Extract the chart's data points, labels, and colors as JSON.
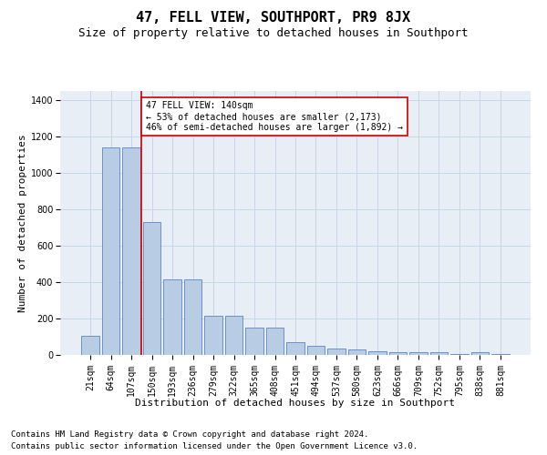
{
  "title": "47, FELL VIEW, SOUTHPORT, PR9 8JX",
  "subtitle": "Size of property relative to detached houses in Southport",
  "xlabel": "Distribution of detached houses by size in Southport",
  "ylabel": "Number of detached properties",
  "categories": [
    "21sqm",
    "64sqm",
    "107sqm",
    "150sqm",
    "193sqm",
    "236sqm",
    "279sqm",
    "322sqm",
    "365sqm",
    "408sqm",
    "451sqm",
    "494sqm",
    "537sqm",
    "580sqm",
    "623sqm",
    "666sqm",
    "709sqm",
    "752sqm",
    "795sqm",
    "838sqm",
    "881sqm"
  ],
  "values": [
    105,
    1140,
    1140,
    730,
    415,
    415,
    215,
    215,
    150,
    150,
    70,
    50,
    35,
    30,
    20,
    15,
    15,
    15,
    5,
    15,
    5
  ],
  "bar_color": "#b8cce4",
  "bar_edge_color": "#4472c4",
  "grid_color": "#c8d4e8",
  "background_color": "#e8eef6",
  "redline_index": 3,
  "annotation_text": "47 FELL VIEW: 140sqm\n← 53% of detached houses are smaller (2,173)\n46% of semi-detached houses are larger (1,892) →",
  "annotation_box_color": "#ffffff",
  "annotation_box_edge": "#cc0000",
  "footnote1": "Contains HM Land Registry data © Crown copyright and database right 2024.",
  "footnote2": "Contains public sector information licensed under the Open Government Licence v3.0.",
  "ylim": [
    0,
    1450
  ],
  "yticks": [
    0,
    200,
    400,
    600,
    800,
    1000,
    1200,
    1400
  ],
  "title_fontsize": 11,
  "subtitle_fontsize": 9,
  "axis_label_fontsize": 8,
  "tick_fontsize": 7,
  "annotation_fontsize": 7,
  "footnote_fontsize": 6.5
}
